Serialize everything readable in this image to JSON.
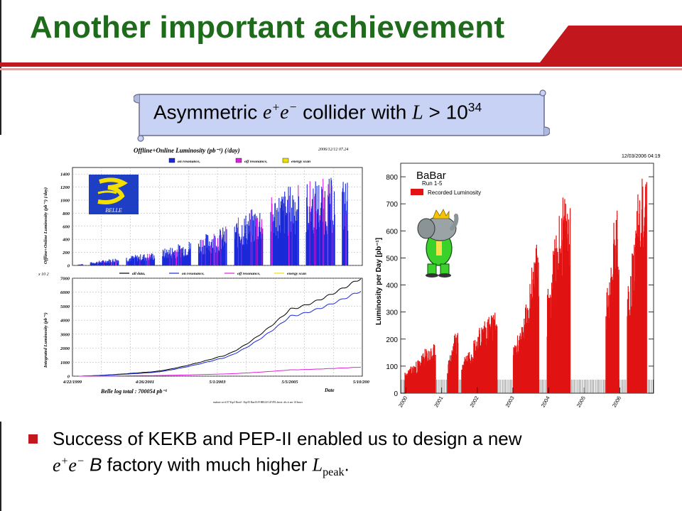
{
  "slide": {
    "title": "Another important achievement",
    "banner": {
      "prefix": "Asymmetric ",
      "e1": "e",
      "plus": "+",
      "e2": "e",
      "minus": "−",
      "middle": " collider with ",
      "L": "L",
      "gt": " > 10",
      "exp": "34"
    },
    "bullet": {
      "line1": "Success of KEKB and PEP-II enabled us to design a new",
      "e1": "e",
      "plus": "+",
      "e2": "e",
      "minus": "−",
      "b": " B",
      "rest": " factory with much higher ",
      "L": "L",
      "sub": "peak",
      "end": "."
    },
    "colors": {
      "title": "#1f6b1c",
      "accent": "#c2171c",
      "banner": "#c8d2f4"
    }
  },
  "chart_data": [
    {
      "type": "bar",
      "title": "Offline+Online Luminosity (pb⁻¹) (/day)",
      "stamp": "2006/12/12 07.24",
      "ylabel": "Offline+Online Luminosity (pb⁻¹) (/day)",
      "ylim": [
        0,
        1500
      ],
      "yticks": [
        0,
        200,
        400,
        600,
        800,
        1000,
        1200,
        1400
      ],
      "legend": [
        "on resonance,",
        "off resonance,",
        "energy scan"
      ],
      "logo_text": "BELLE",
      "x_period": [
        "1999",
        "2007"
      ],
      "approx_daily_peak": [
        {
          "year": 1999.5,
          "value": 20
        },
        {
          "year": 2000.5,
          "value": 120
        },
        {
          "year": 2001.5,
          "value": 200
        },
        {
          "year": 2002.5,
          "value": 380
        },
        {
          "year": 2003.5,
          "value": 600
        },
        {
          "year": 2004.5,
          "value": 950
        },
        {
          "year": 2005.5,
          "value": 1300
        },
        {
          "year": 2006.5,
          "value": 1350
        }
      ]
    },
    {
      "type": "line",
      "ylabel": "Integrated Luminosity (pb⁻¹)",
      "yscale_note": "x 10 2",
      "ylim": [
        0,
        7000
      ],
      "yticks": [
        0,
        1000,
        2000,
        3000,
        4000,
        5000,
        6000,
        7000
      ],
      "xticks": [
        "4/22/1999",
        "4/26/2001",
        "5/1/2003",
        "5/5/2005",
        "5/10/2007"
      ],
      "xlabel": "Date",
      "legend": [
        "all data,",
        "on resonance,",
        "off resonance,",
        "energy scan"
      ],
      "footer": "Belle log total : 700054 pb⁻¹",
      "footnote": "mukato ver.4.57 Exp3 Run4 - Exp55 Run1519 BELLE LEVEL latest: dis is not 14 hours",
      "series": [
        {
          "name": "all data,",
          "x": [
            "4/22/1999",
            "4/26/2001",
            "5/1/2003",
            "5/5/2005",
            "5/10/2007"
          ],
          "values": [
            0,
            300,
            1400,
            4800,
            7000
          ]
        },
        {
          "name": "on resonance,",
          "x": [
            "4/22/1999",
            "4/26/2001",
            "5/1/2003",
            "5/5/2005",
            "5/10/2007"
          ],
          "values": [
            0,
            250,
            1250,
            4300,
            6100
          ]
        },
        {
          "name": "off resonance,",
          "x": [
            "4/22/1999",
            "4/26/2001",
            "5/1/2003",
            "5/5/2005",
            "5/10/2007"
          ],
          "values": [
            0,
            40,
            150,
            450,
            650
          ]
        }
      ]
    },
    {
      "type": "bar",
      "stamp": "12/03/2006 04:19",
      "title": "BaBar",
      "subtitle": "Run 1-5",
      "legend": [
        "Recorded Luminosity"
      ],
      "ylabel": "Luminosity per Day [pb⁻¹]",
      "ylim": [
        0,
        850
      ],
      "yticks": [
        0,
        100,
        200,
        300,
        400,
        500,
        600,
        700,
        800
      ],
      "xticks": [
        "2000",
        "2001",
        "2002",
        "2003",
        "2004",
        "2005",
        "2006"
      ],
      "approx_daily_peak": [
        {
          "year": 2000.3,
          "value": 150
        },
        {
          "year": 2001.2,
          "value": 210
        },
        {
          "year": 2001.9,
          "value": 270
        },
        {
          "year": 2003.3,
          "value": 350
        },
        {
          "year": 2004.0,
          "value": 760
        },
        {
          "year": 2005.8,
          "value": 660
        },
        {
          "year": 2006.6,
          "value": 830
        }
      ]
    }
  ]
}
